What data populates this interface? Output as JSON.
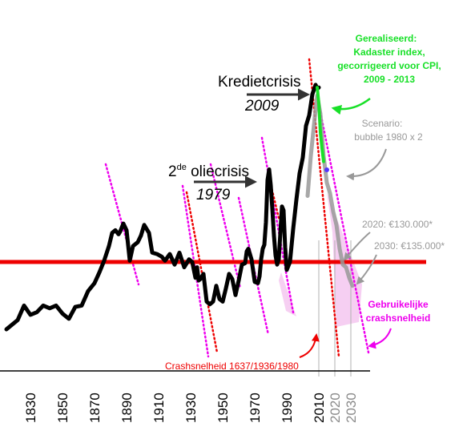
{
  "chart_data": {
    "type": "line",
    "x_ticks": [
      1830,
      1850,
      1870,
      1890,
      1910,
      1930,
      1950,
      1970,
      1990,
      2010,
      2020,
      2030
    ],
    "xlim": [
      1820,
      2040
    ],
    "reference_line_color": "#ee0000",
    "series": [
      {
        "role": "historical index",
        "color": "#000000",
        "x": [
          1815,
          1822,
          1826,
          1830,
          1834,
          1838,
          1842,
          1846,
          1850,
          1854,
          1858,
          1862,
          1866,
          1870,
          1873,
          1876,
          1879,
          1881,
          1883,
          1885,
          1886,
          1888,
          1890,
          1892,
          1894,
          1897,
          1899,
          1901,
          1904,
          1906,
          1909,
          1912,
          1914,
          1917,
          1920,
          1923,
          1926,
          1929,
          1931,
          1933,
          1934,
          1935,
          1936,
          1938,
          1940,
          1942,
          1944,
          1946,
          1948,
          1950,
          1952,
          1954,
          1956,
          1958,
          1960,
          1962,
          1964,
          1965,
          1966,
          1968,
          1970,
          1972,
          1973,
          1974,
          1975,
          1976,
          1977,
          1978,
          1979,
          1980,
          1981,
          1982,
          1983,
          1984,
          1985,
          1986,
          1987,
          1988,
          1989,
          1990,
          1992,
          1994,
          1996,
          1998,
          2000,
          2002,
          2004,
          2006,
          2008,
          2009,
          2010
        ],
        "y": [
          -25.5,
          -22,
          -16.5,
          -20,
          -19,
          -16.5,
          -17.5,
          -16.5,
          -19.5,
          -21.5,
          -17,
          -16.5,
          -11,
          -8,
          -4,
          0.5,
          6,
          11,
          12,
          10.5,
          11.5,
          14.5,
          12,
          0.5,
          6,
          7.5,
          10,
          14,
          11,
          3.5,
          3,
          2,
          0.5,
          3,
          -1,
          3.5,
          -2,
          1,
          0,
          -6,
          -2,
          -7,
          -6.5,
          -4.5,
          -15,
          -16,
          -15,
          -9,
          -14,
          -15,
          -10,
          -4.5,
          -6.5,
          -12.5,
          -7,
          -1,
          -0.5,
          4,
          5,
          1,
          -7.5,
          -8,
          -5.5,
          1,
          5,
          6.5,
          15,
          31,
          35,
          29,
          20,
          10,
          2.5,
          -1,
          1,
          11,
          21,
          19.5,
          5.5,
          -3,
          0,
          12.5,
          23.5,
          33.5,
          39.5,
          51.5,
          55.5,
          63.5,
          67,
          65.5,
          66
        ]
      },
      {
        "role": "gerealiseerd",
        "color": "#18e028",
        "x": [
          2009,
          2010,
          2011,
          2012,
          2013
        ],
        "y": [
          66,
          60,
          49,
          43,
          38
        ]
      },
      {
        "role": "scenario",
        "color": "#999999",
        "x": [
          2003,
          2005,
          2007,
          2009,
          2011,
          2013,
          2015,
          2017,
          2019,
          2021,
          2023,
          2025,
          2027,
          2029,
          2031
        ],
        "y": [
          25,
          40,
          52,
          63,
          56,
          40,
          30,
          26,
          19,
          14,
          5,
          -1,
          -2,
          -6,
          -9
        ]
      }
    ],
    "text": {
      "oliecrisis_prefix": "2",
      "oliecrisis_sup": "de",
      "oliecrisis_suffix": " oliecrisis",
      "oliecrisis_year": "1979",
      "kredietcrisis": "Kredietcrisis",
      "kredietcrisis_year": "2009",
      "realised_1": "Gerealiseerd:",
      "realised_2": "Kadaster index,",
      "realised_3": "gecorrigeerd voor CPI,",
      "realised_4": "2009 - 2013",
      "scenario_1": "Scenario:",
      "scenario_2": "bubble 1980 x 2",
      "val_2020": "2020: €130.000*",
      "val_2030": "2030: €135.000*",
      "usual_1": "Gebruikelijke",
      "usual_2": "crashsnelheid",
      "crash_label": "Crashsnelheid 1637/1936/1980"
    },
    "colors": {
      "green": "#18e028",
      "magenta": "#ee00ee",
      "red": "#ee0000",
      "grey": "#999999",
      "dark": "#333333",
      "pink_fill": "#f6cff2"
    },
    "arrow_icons": [
      "arrow-right-icon",
      "arrow-right-icon",
      "curved-arrow-icon"
    ]
  }
}
